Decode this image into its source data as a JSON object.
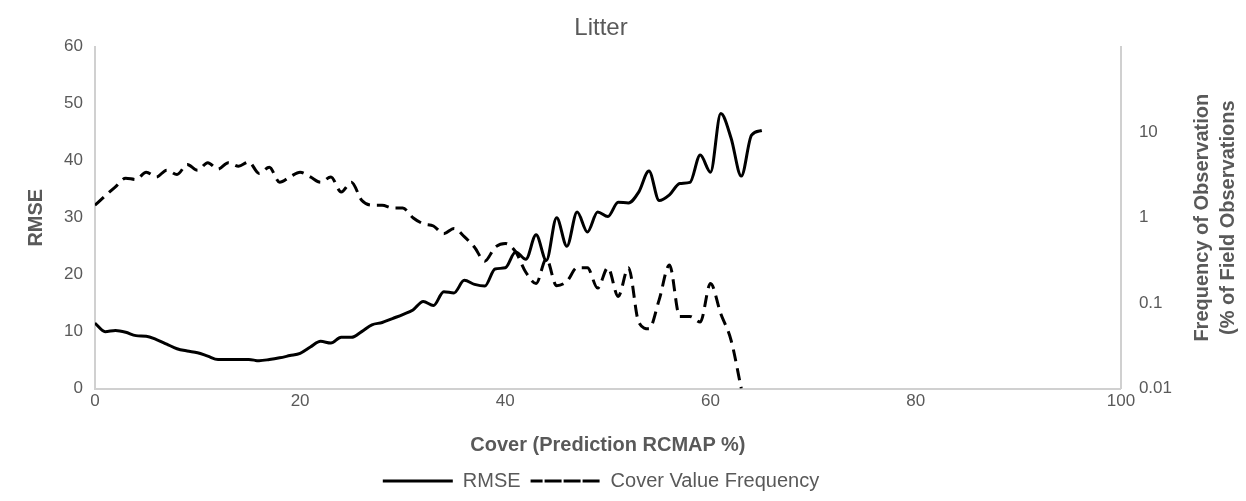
{
  "chart_data": {
    "type": "line",
    "title": "Litter",
    "xlabel": "Cover (Prediction RCMAP %)",
    "ylabel": "RMSE",
    "y2label": "Frequency of Observation\n(% of Field Observations",
    "xlim": [
      0,
      100
    ],
    "xticks": [
      0,
      20,
      40,
      60,
      80,
      100
    ],
    "ylim": [
      0,
      60
    ],
    "yticks": [
      0,
      10,
      20,
      30,
      40,
      50,
      60
    ],
    "y2lim": [
      0.01,
      100
    ],
    "y2ticks": [
      0.01,
      0.1,
      1,
      10
    ],
    "log": "y2",
    "grid": false,
    "legend": "bottom",
    "marker": "none",
    "series": [
      {
        "name": "RMSE",
        "color": "#000000",
        "line_style": "solid",
        "x": [
          0,
          1,
          2,
          3,
          4,
          5,
          6,
          7,
          8,
          9,
          10,
          11,
          12,
          13,
          14,
          15,
          16,
          17,
          18,
          19,
          20,
          21,
          22,
          23,
          24,
          25,
          26,
          27,
          28,
          29,
          30,
          31,
          32,
          33,
          34,
          35,
          36,
          37,
          38,
          39,
          40,
          41,
          42,
          43,
          44,
          45,
          46,
          47,
          48,
          49,
          50,
          51,
          52,
          53,
          54,
          55,
          56,
          57,
          58,
          59,
          60,
          61,
          62,
          63,
          64,
          65
        ],
        "values": [
          11.5,
          10,
          10.2,
          9.9,
          9.3,
          9.2,
          8.6,
          7.8,
          7,
          6.6,
          6.3,
          5.7,
          5.1,
          5.1,
          5.1,
          5.1,
          4.9,
          5.1,
          5.4,
          5.8,
          6.2,
          7.3,
          8.3,
          8,
          9,
          9,
          10,
          11.2,
          11.6,
          12.3,
          13,
          13.8,
          15.3,
          14.6,
          17,
          16.8,
          19,
          18.3,
          18,
          21,
          21.2,
          24,
          22.7,
          27,
          22.5,
          30,
          25,
          31,
          27.5,
          31,
          30.2,
          32.7,
          32.6,
          34.5,
          38.2,
          33,
          34,
          36,
          36.2,
          41,
          38,
          48.3,
          44,
          37.3,
          44.5,
          45.3
        ]
      },
      {
        "name": "Cover Value Frequency",
        "color": "#000000",
        "line_style": "dashed",
        "axis": "y2",
        "x": [
          0,
          1,
          2,
          3,
          4,
          5,
          6,
          7,
          8,
          9,
          10,
          11,
          12,
          13,
          14,
          15,
          16,
          17,
          18,
          19,
          20,
          21,
          22,
          23,
          24,
          25,
          26,
          27,
          28,
          29,
          30,
          31,
          32,
          33,
          34,
          35,
          36,
          37,
          38,
          39,
          40,
          41,
          42,
          43,
          44,
          45,
          46,
          47,
          48,
          49,
          50,
          51,
          52,
          53,
          54,
          55,
          56,
          57,
          58,
          59,
          60,
          61,
          62,
          63
        ],
        "values": [
          1.4,
          1.8,
          2.3,
          2.9,
          2.8,
          3.4,
          3,
          3.6,
          3.2,
          4.2,
          3.6,
          4.4,
          3.7,
          4.4,
          4,
          4.5,
          3.3,
          3.9,
          2.6,
          3,
          3.4,
          3,
          2.6,
          3,
          2,
          2.6,
          1.6,
          1.4,
          1.4,
          1.3,
          1.3,
          1,
          0.85,
          0.8,
          0.65,
          0.75,
          0.6,
          0.45,
          0.31,
          0.45,
          0.5,
          0.4,
          0.23,
          0.17,
          0.33,
          0.16,
          0.18,
          0.26,
          0.26,
          0.15,
          0.26,
          0.12,
          0.26,
          0.06,
          0.05,
          0.11,
          0.28,
          0.07,
          0.07,
          0.06,
          0.17,
          0.075,
          0.037,
          0.01
        ]
      }
    ]
  }
}
